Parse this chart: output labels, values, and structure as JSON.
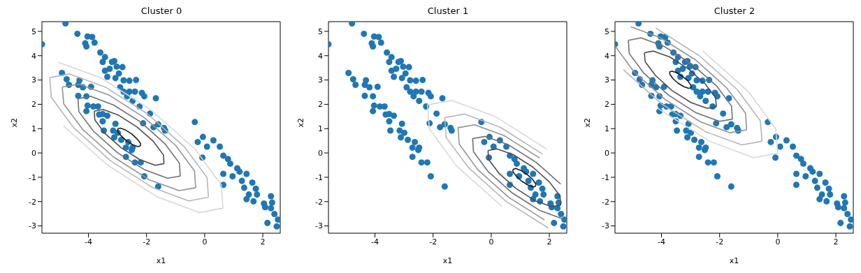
{
  "chart_data": [
    {
      "type": "scatter",
      "title": "Cluster 0",
      "xlabel": "x1",
      "ylabel": "x2",
      "xlim": [
        -5.6,
        2.6
      ],
      "ylim": [
        -3.3,
        5.4
      ],
      "xticks": [
        -4,
        -2,
        0,
        2
      ],
      "yticks": [
        -3,
        -2,
        -1,
        0,
        1,
        2,
        3,
        4,
        5
      ],
      "marker": "circle",
      "series": [
        {
          "color": "#1f77b4",
          "x": [
            -4.79,
            -4.38,
            -4.03,
            -3.87,
            -3.79,
            -4.11,
            -4.07,
            -5.6,
            -3.59,
            -3.43,
            -3.51,
            -3.19,
            -3.11,
            -3.03,
            -2.83,
            -3.27,
            -3.43,
            -2.95,
            -3.35,
            -3.07,
            -2.79,
            -2.59,
            -2.36,
            -4.91,
            -4.75,
            -4.31,
            -4.67,
            -4.35,
            -4.19,
            -3.91,
            -2.91,
            -2.79,
            -2.59,
            -2.4,
            -2.16,
            -2.08,
            -1.68,
            -4.35,
            -4.07,
            -2.67,
            -2.48,
            -2.24,
            -4.03,
            -3.83,
            -3.67,
            -4.07,
            -3.51,
            -3.63,
            -3.35,
            -1.88,
            -2.12,
            -1.6,
            -1.76,
            -1.4,
            -1.36,
            -3.51,
            -3.07,
            -3.47,
            -3.15,
            -2.99,
            -3.11,
            -2.87,
            -2.63,
            -2.48,
            -2.71,
            -2.51,
            -2.71,
            -2.4,
            -2.2,
            -2.08,
            -1.6,
            -0.34,
            -0.06,
            -0.24,
            0.3,
            0.52,
            0.08,
            -0.08,
            0.64,
            0.8,
            0.88,
            1.12,
            1.2,
            0.64,
            0.96,
            1.44,
            1.28,
            1.64,
            0.64,
            1.36,
            1.76,
            1.52,
            1.8,
            1.44,
            1.68,
            2.04,
            2.28,
            2.32,
            2.08,
            2.28,
            2.4,
            2.16,
            2.52,
            2.48
          ],
          "values": [
            5.33,
            4.9,
            4.79,
            4.77,
            4.54,
            4.51,
            4.38,
            4.47,
            4.13,
            3.94,
            3.74,
            3.74,
            3.78,
            3.55,
            3.53,
            3.46,
            3.38,
            3.27,
            3.13,
            3.08,
            2.99,
            2.97,
            3.0,
            3.29,
            3.03,
            2.99,
            2.8,
            2.8,
            2.7,
            2.72,
            2.7,
            2.52,
            2.52,
            2.52,
            2.47,
            2.33,
            2.25,
            2.35,
            2.33,
            2.33,
            2.14,
            1.91,
            1.95,
            1.91,
            1.91,
            1.72,
            1.6,
            1.58,
            1.53,
            1.62,
            1.22,
            1.18,
            1.06,
            1.03,
            0.92,
            1.3,
            1.2,
            0.92,
            0.92,
            0.83,
            0.64,
            0.54,
            0.45,
            0.22,
            0.22,
            0.12,
            -0.16,
            -0.39,
            -0.39,
            -0.96,
            -1.38,
            1.27,
            0.66,
            0.45,
            0.52,
            0.26,
            0.26,
            -0.19,
            -0.11,
            -0.25,
            -0.44,
            -0.63,
            -0.77,
            -0.86,
            -0.96,
            -0.86,
            -1.15,
            -1.22,
            -1.31,
            -1.43,
            -1.47,
            -1.71,
            -1.71,
            -1.9,
            -1.99,
            -2.08,
            -1.78,
            -2.04,
            -2.23,
            -2.27,
            -2.51,
            -2.88,
            -2.74,
            -3.02
          ]
        },
        {
          "type": "line",
          "marker": "none",
          "color": "#1a1a1a",
          "x": [
            -2.21,
            -2.21,
            -2.33,
            -2.51,
            -2.72,
            -2.9,
            -2.99
          ],
          "values": [
            0.29,
            0.4,
            0.58,
            0.78,
            0.94,
            1.02,
            1.0
          ]
        },
        {
          "type": "line",
          "marker": "none",
          "color": "#1a1a1a",
          "x": [
            -2.99,
            -2.99,
            -2.87,
            -2.69,
            -2.48,
            -2.3,
            -2.21
          ],
          "values": [
            1.0,
            0.88,
            0.7,
            0.5,
            0.34,
            0.26,
            0.29
          ]
        },
        {
          "type": "line",
          "marker": "none",
          "color": "#4d4d4d",
          "x": [
            -1.4,
            -1.42,
            -1.76,
            -2.32,
            -2.96,
            -3.5,
            -3.8
          ],
          "values": [
            -0.44,
            -0.08,
            0.47,
            1.06,
            1.55,
            1.79,
            1.72
          ]
        },
        {
          "type": "line",
          "marker": "none",
          "color": "#4d4d4d",
          "x": [
            -3.8,
            -3.78,
            -3.44,
            -2.88,
            -2.24,
            -1.7,
            -1.4
          ],
          "values": [
            1.72,
            1.36,
            0.81,
            0.22,
            -0.27,
            -0.51,
            -0.44
          ]
        },
        {
          "type": "line",
          "marker": "none",
          "color": "#707070",
          "x": [
            -0.84,
            -0.87,
            -1.37,
            -2.19,
            -3.13,
            -3.92,
            -4.36
          ],
          "values": [
            -0.95,
            -0.42,
            0.38,
            1.26,
            1.97,
            2.33,
            2.23
          ]
        },
        {
          "type": "line",
          "marker": "none",
          "color": "#707070",
          "x": [
            -4.36,
            -4.33,
            -3.83,
            -3.01,
            -2.07,
            -1.28,
            -0.84
          ],
          "values": [
            2.23,
            1.7,
            0.9,
            0.02,
            -0.69,
            -1.04,
            -0.95
          ]
        },
        {
          "type": "line",
          "marker": "none",
          "color": "#939393",
          "x": [
            -0.31,
            -0.35,
            -1.0,
            -2.07,
            -3.29,
            -4.32,
            -4.9
          ],
          "values": [
            -1.43,
            -0.74,
            0.31,
            1.45,
            2.38,
            2.83,
            2.71
          ]
        },
        {
          "type": "line",
          "marker": "none",
          "color": "#939393",
          "x": [
            -4.9,
            -4.85,
            -4.2,
            -3.13,
            -1.91,
            -0.88,
            -0.31
          ],
          "values": [
            2.71,
            2.02,
            0.97,
            -0.17,
            -1.1,
            -1.55,
            -1.43
          ]
        },
        {
          "type": "line",
          "marker": "none",
          "color": "#b6b6b6",
          "x": [
            0.13,
            0.08,
            -0.69,
            -1.97,
            -3.42,
            -4.65,
            -5.33
          ],
          "values": [
            -1.82,
            -1.01,
            0.24,
            1.61,
            2.71,
            3.25,
            3.1
          ]
        },
        {
          "type": "line",
          "marker": "none",
          "color": "#b6b6b6",
          "x": [
            -5.33,
            -5.28,
            -4.51,
            -3.23,
            -1.78,
            -0.55,
            0.13
          ],
          "values": [
            3.1,
            2.29,
            1.04,
            -0.33,
            -1.43,
            -1.97,
            -1.82
          ]
        },
        {
          "type": "line",
          "marker": "none",
          "color": "#d8d8d8",
          "x": [
            0.63,
            0.57,
            -0.34,
            -1.86,
            -3.57,
            -5.03
          ],
          "values": [
            -2.27,
            -1.31,
            0.17,
            1.78,
            3.09,
            3.73
          ]
        },
        {
          "type": "line",
          "marker": "none",
          "color": "#d8d8d8",
          "x": [
            -4.86,
            -3.34,
            -1.63,
            -0.17,
            0.63
          ],
          "values": [
            1.11,
            -0.5,
            -1.81,
            -2.45,
            -2.27
          ]
        }
      ]
    },
    {
      "type": "scatter",
      "title": "Cluster 1",
      "xlabel": "x1",
      "ylabel": "x2",
      "xlim": [
        -5.6,
        2.6
      ],
      "ylim": [
        -3.3,
        5.4
      ],
      "xticks": [
        -4,
        -2,
        0,
        2
      ],
      "yticks": [
        -3,
        -2,
        -1,
        0,
        1,
        2,
        3,
        4,
        5
      ],
      "marker": "circle",
      "series": [
        {
          "color": "#1f77b4",
          "x": [
            -4.79,
            -4.38,
            -4.03,
            -3.87,
            -3.79,
            -4.11,
            -4.07,
            -5.6,
            -3.59,
            -3.43,
            -3.51,
            -3.19,
            -3.11,
            -3.03,
            -2.83,
            -3.27,
            -3.43,
            -2.95,
            -3.35,
            -3.07,
            -2.79,
            -2.59,
            -2.36,
            -4.91,
            -4.75,
            -4.31,
            -4.67,
            -4.35,
            -4.19,
            -3.91,
            -2.91,
            -2.79,
            -2.59,
            -2.4,
            -2.16,
            -2.08,
            -1.68,
            -4.35,
            -4.07,
            -2.67,
            -2.48,
            -2.24,
            -4.03,
            -3.83,
            -3.67,
            -4.07,
            -3.51,
            -3.63,
            -3.35,
            -1.88,
            -2.12,
            -1.6,
            -1.76,
            -1.4,
            -1.36,
            -3.51,
            -3.07,
            -3.47,
            -3.15,
            -2.99,
            -3.11,
            -2.87,
            -2.63,
            -2.48,
            -2.71,
            -2.51,
            -2.71,
            -2.4,
            -2.2,
            -2.08,
            -1.6,
            -0.34,
            -0.06,
            -0.24,
            0.3,
            0.52,
            0.08,
            -0.08,
            0.64,
            0.8,
            0.88,
            1.12,
            1.2,
            0.64,
            0.96,
            1.44,
            1.28,
            1.64,
            0.64,
            1.36,
            1.76,
            1.52,
            1.8,
            1.44,
            1.68,
            2.04,
            2.28,
            2.32,
            2.08,
            2.28,
            2.4,
            2.16,
            2.52,
            2.48
          ],
          "values": [
            5.33,
            4.9,
            4.79,
            4.77,
            4.54,
            4.51,
            4.38,
            4.47,
            4.13,
            3.94,
            3.74,
            3.74,
            3.78,
            3.55,
            3.53,
            3.46,
            3.38,
            3.27,
            3.13,
            3.08,
            2.99,
            2.97,
            3.0,
            3.29,
            3.03,
            2.99,
            2.8,
            2.8,
            2.7,
            2.72,
            2.7,
            2.52,
            2.52,
            2.52,
            2.47,
            2.33,
            2.25,
            2.35,
            2.33,
            2.33,
            2.14,
            1.91,
            1.95,
            1.91,
            1.91,
            1.72,
            1.6,
            1.58,
            1.53,
            1.62,
            1.22,
            1.18,
            1.06,
            1.03,
            0.92,
            1.3,
            1.2,
            0.92,
            0.92,
            0.83,
            0.64,
            0.54,
            0.45,
            0.22,
            0.22,
            0.12,
            -0.16,
            -0.39,
            -0.39,
            -0.96,
            -1.38,
            1.27,
            0.66,
            0.45,
            0.52,
            0.26,
            0.26,
            -0.19,
            -0.11,
            -0.25,
            -0.44,
            -0.63,
            -0.77,
            -0.86,
            -0.96,
            -0.86,
            -1.15,
            -1.22,
            -1.31,
            -1.43,
            -1.47,
            -1.71,
            -1.71,
            -1.9,
            -1.99,
            -2.08,
            -1.78,
            -2.04,
            -2.23,
            -2.27,
            -2.51,
            -2.88,
            -2.74,
            -3.02
          ]
        },
        {
          "type": "line",
          "marker": "none",
          "color": "#1a1a1a",
          "x": [
            1.53,
            1.53,
            1.42,
            1.23,
            1.02,
            0.85,
            0.75
          ],
          "values": [
            -1.37,
            -1.26,
            -1.08,
            -0.88,
            -0.72,
            -0.64,
            -0.67
          ]
        },
        {
          "type": "line",
          "marker": "none",
          "color": "#1a1a1a",
          "x": [
            0.75,
            0.75,
            0.87,
            1.05,
            1.26,
            1.44,
            1.53
          ],
          "values": [
            -0.67,
            -0.78,
            -0.96,
            -1.16,
            -1.32,
            -1.4,
            -1.37
          ]
        },
        {
          "type": "line",
          "marker": "none",
          "color": "#4d4d4d",
          "x": [
            2.39,
            2.37,
            2.01,
            1.43,
            0.76,
            0.2,
            -0.11
          ],
          "values": [
            -2.15,
            -1.77,
            -1.2,
            -0.58,
            -0.07,
            0.17,
            0.1
          ]
        },
        {
          "type": "line",
          "marker": "none",
          "color": "#4d4d4d",
          "x": [
            -0.11,
            -0.09,
            0.27,
            0.85,
            1.52,
            2.08,
            2.39
          ],
          "values": [
            0.1,
            -0.27,
            -0.84,
            -1.46,
            -1.97,
            -2.21,
            -2.15
          ]
        },
        {
          "type": "line",
          "marker": "none",
          "color": "#707070",
          "x": [
            2.39,
            1.55,
            0.6,
            -0.2,
            -0.64,
            -0.61,
            -0.11,
            0.73,
            1.68,
            2.48
          ],
          "values": [
            -1.28,
            -0.39,
            0.33,
            0.68,
            0.59,
            0.05,
            -0.76,
            -1.65,
            -2.37,
            -2.72
          ]
        },
        {
          "type": "line",
          "marker": "none",
          "color": "#939393",
          "x": [
            1.67,
            0.45,
            -0.57,
            -1.14,
            -1.1,
            -0.46,
            0.61,
            1.83
          ],
          "values": [
            -0.21,
            0.71,
            1.16,
            1.04,
            0.36,
            -0.69,
            -1.83,
            -2.75
          ]
        },
        {
          "type": "line",
          "marker": "none",
          "color": "#b6b6b6",
          "x": [
            1.77,
            0.32,
            -0.92,
            -1.6,
            -1.55,
            -0.77,
            0.51,
            1.97
          ],
          "values": [
            -0.05,
            1.05,
            1.6,
            1.45,
            0.63,
            -0.62,
            -1.99,
            -3.09
          ]
        },
        {
          "type": "line",
          "marker": "none",
          "color": "#d8d8d8",
          "x": [
            1.91,
            0.14,
            -1.36,
            -2.19,
            -2.13,
            -1.19,
            0.37
          ],
          "values": [
            0.16,
            1.5,
            2.16,
            1.98,
            0.99,
            -0.54,
            -2.2
          ]
        }
      ]
    },
    {
      "type": "scatter",
      "title": "Cluster 2",
      "xlabel": "x1",
      "ylabel": "x2",
      "xlim": [
        -5.6,
        2.6
      ],
      "ylim": [
        -3.3,
        5.4
      ],
      "xticks": [
        -4,
        -2,
        0,
        2
      ],
      "yticks": [
        -3,
        -2,
        -1,
        0,
        1,
        2,
        3,
        4,
        5
      ],
      "marker": "circle",
      "series": [
        {
          "color": "#1f77b4",
          "x": [
            -4.79,
            -4.38,
            -4.03,
            -3.87,
            -3.79,
            -4.11,
            -4.07,
            -5.6,
            -3.59,
            -3.43,
            -3.51,
            -3.19,
            -3.11,
            -3.03,
            -2.83,
            -3.27,
            -3.43,
            -2.95,
            -3.35,
            -3.07,
            -2.79,
            -2.59,
            -2.36,
            -4.91,
            -4.75,
            -4.31,
            -4.67,
            -4.35,
            -4.19,
            -3.91,
            -2.91,
            -2.79,
            -2.59,
            -2.4,
            -2.16,
            -2.08,
            -1.68,
            -4.35,
            -4.07,
            -2.67,
            -2.48,
            -2.24,
            -4.03,
            -3.83,
            -3.67,
            -4.07,
            -3.51,
            -3.63,
            -3.35,
            -1.88,
            -2.12,
            -1.6,
            -1.76,
            -1.4,
            -1.36,
            -3.51,
            -3.07,
            -3.47,
            -3.15,
            -2.99,
            -3.11,
            -2.87,
            -2.63,
            -2.48,
            -2.71,
            -2.51,
            -2.71,
            -2.4,
            -2.2,
            -2.08,
            -1.6,
            -0.34,
            -0.06,
            -0.24,
            0.3,
            0.52,
            0.08,
            -0.08,
            0.64,
            0.8,
            0.88,
            1.12,
            1.2,
            0.64,
            0.96,
            1.44,
            1.28,
            1.64,
            0.64,
            1.36,
            1.76,
            1.52,
            1.8,
            1.44,
            1.68,
            2.04,
            2.28,
            2.32,
            2.08,
            2.28,
            2.4,
            2.16,
            2.52,
            2.48
          ],
          "values": [
            5.33,
            4.9,
            4.79,
            4.77,
            4.54,
            4.51,
            4.38,
            4.47,
            4.13,
            3.94,
            3.74,
            3.74,
            3.78,
            3.55,
            3.53,
            3.46,
            3.38,
            3.27,
            3.13,
            3.08,
            2.99,
            2.97,
            3.0,
            3.29,
            3.03,
            2.99,
            2.8,
            2.8,
            2.7,
            2.72,
            2.7,
            2.52,
            2.52,
            2.52,
            2.47,
            2.33,
            2.25,
            2.35,
            2.33,
            2.33,
            2.14,
            1.91,
            1.95,
            1.91,
            1.91,
            1.72,
            1.6,
            1.58,
            1.53,
            1.62,
            1.22,
            1.18,
            1.06,
            1.03,
            0.92,
            1.3,
            1.2,
            0.92,
            0.92,
            0.83,
            0.64,
            0.54,
            0.45,
            0.22,
            0.22,
            0.12,
            -0.16,
            -0.39,
            -0.39,
            -0.96,
            -1.38,
            1.27,
            0.66,
            0.45,
            0.52,
            0.26,
            0.26,
            -0.19,
            -0.11,
            -0.25,
            -0.44,
            -0.63,
            -0.77,
            -0.86,
            -0.96,
            -0.86,
            -1.15,
            -1.22,
            -1.31,
            -1.43,
            -1.47,
            -1.71,
            -1.71,
            -1.9,
            -1.99,
            -2.08,
            -1.78,
            -2.04,
            -2.23,
            -2.27,
            -2.51,
            -2.88,
            -2.74,
            -3.02
          ]
        },
        {
          "type": "line",
          "marker": "none",
          "color": "#1a1a1a",
          "x": [
            -2.98,
            -2.99,
            -3.09,
            -3.27,
            -3.46,
            -3.63,
            -3.72
          ],
          "values": [
            2.68,
            2.79,
            2.96,
            3.14,
            3.29,
            3.36,
            3.34
          ]
        },
        {
          "type": "line",
          "marker": "none",
          "color": "#1a1a1a",
          "x": [
            -3.72,
            -3.71,
            -3.61,
            -3.44,
            -3.24,
            -3.07,
            -2.98
          ],
          "values": [
            3.34,
            3.23,
            3.06,
            2.88,
            2.73,
            2.66,
            2.68
          ]
        },
        {
          "type": "line",
          "marker": "none",
          "color": "#4d4d4d",
          "x": [
            -2.11,
            -2.14,
            -2.49,
            -3.07,
            -3.72,
            -4.28,
            -4.59
          ],
          "values": [
            1.9,
            2.27,
            2.83,
            3.45,
            3.95,
            4.19,
            4.12
          ]
        },
        {
          "type": "line",
          "marker": "none",
          "color": "#4d4d4d",
          "x": [
            -4.59,
            -4.56,
            -4.21,
            -3.64,
            -2.98,
            -2.42,
            -2.11
          ],
          "values": [
            4.12,
            3.75,
            3.19,
            2.57,
            2.07,
            1.83,
            1.9
          ]
        },
        {
          "type": "line",
          "marker": "none",
          "color": "#707070",
          "x": [
            -1.56,
            -1.59,
            -2.1,
            -2.94,
            -3.89,
            -4.7,
            -5.14
          ],
          "values": [
            1.39,
            1.93,
            2.75,
            3.64,
            4.37,
            4.73,
            4.63
          ]
        },
        {
          "type": "line",
          "marker": "none",
          "color": "#707070",
          "x": [
            -5.14,
            -5.11,
            -4.6,
            -3.76,
            -2.81,
            -2.0,
            -1.56
          ],
          "values": [
            4.63,
            4.09,
            3.27,
            2.38,
            1.65,
            1.3,
            1.39
          ]
        },
        {
          "type": "line",
          "marker": "none",
          "color": "#939393",
          "x": [
            -1.07,
            -1.11,
            -1.76,
            -2.82,
            -4.04,
            -5.06,
            null,
            -5.59,
            -4.95,
            -3.88,
            -2.66,
            -1.64,
            -1.07
          ],
          "values": [
            0.95,
            1.64,
            2.68,
            3.82,
            4.74,
            5.19,
            null,
            4.39,
            3.34,
            2.2,
            1.28,
            0.83,
            0.95
          ]
        },
        {
          "type": "line",
          "marker": "none",
          "color": "#b6b6b6",
          "x": [
            -0.54,
            -0.6,
            -1.39,
            -2.7,
            -4.2,
            null,
            null,
            null,
            -5.31,
            -4.0,
            -2.5,
            -1.24,
            -0.54
          ],
          "values": [
            0.48,
            1.32,
            2.6,
            4.0,
            5.14,
            null,
            null,
            null,
            3.42,
            2.02,
            0.88,
            0.33,
            0.48
          ]
        },
        {
          "type": "line",
          "marker": "none",
          "color": "#d8d8d8",
          "x": [
            0.0,
            -0.07,
            -1.01,
            -2.58,
            null,
            null,
            null,
            null,
            null,
            -4.12,
            -2.34,
            -0.84,
            0.0
          ],
          "values": [
            -0.01,
            0.99,
            2.52,
            4.19,
            null,
            null,
            null,
            null,
            null,
            1.83,
            0.48,
            -0.19,
            -0.01
          ]
        }
      ]
    }
  ]
}
